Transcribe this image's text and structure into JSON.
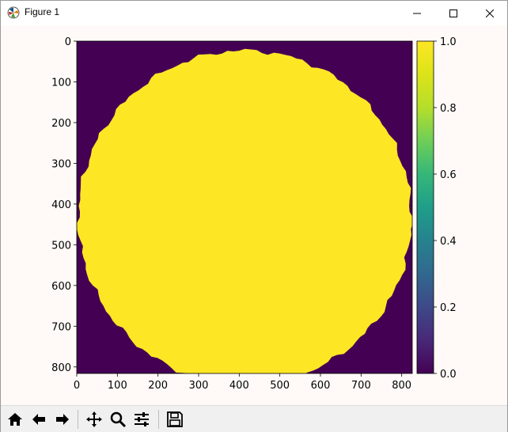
{
  "window": {
    "title": "Figure 1"
  },
  "toolbar": {
    "buttons": [
      {
        "icon": "home-icon",
        "label": "Home"
      },
      {
        "icon": "back-arrow-icon",
        "label": "Back"
      },
      {
        "icon": "forward-arrow-icon",
        "label": "Forward"
      },
      {
        "icon": "pan-icon",
        "label": "Pan"
      },
      {
        "icon": "zoom-icon",
        "label": "Zoom"
      },
      {
        "icon": "configure-subplots-icon",
        "label": "Configure subplots"
      },
      {
        "icon": "save-icon",
        "label": "Save"
      }
    ]
  },
  "chart_data": {
    "type": "heatmap",
    "image_width": 826,
    "image_height": 816,
    "content": "binary mask: filled disk of value 1 on background of value 0",
    "disk_center": [
      414,
      433
    ],
    "disk_radius": 410,
    "colormap": "viridis",
    "colors": {
      "low": "#440154",
      "high": "#fde725"
    },
    "xticks": [
      "0",
      "100",
      "200",
      "300",
      "400",
      "500",
      "600",
      "700",
      "800"
    ],
    "xtick_values": [
      0,
      100,
      200,
      300,
      400,
      500,
      600,
      700,
      800
    ],
    "yticks": [
      "0",
      "100",
      "200",
      "300",
      "400",
      "500",
      "600",
      "700",
      "800"
    ],
    "ytick_values": [
      0,
      100,
      200,
      300,
      400,
      500,
      600,
      700,
      800
    ],
    "colorbar": {
      "range": [
        0.0,
        1.0
      ],
      "ticks": [
        "0.0",
        "0.2",
        "0.4",
        "0.6",
        "0.8",
        "1.0"
      ],
      "tick_values": [
        0.0,
        0.2,
        0.4,
        0.6,
        0.8,
        1.0
      ]
    },
    "title": "",
    "xlabel": "",
    "ylabel": ""
  }
}
